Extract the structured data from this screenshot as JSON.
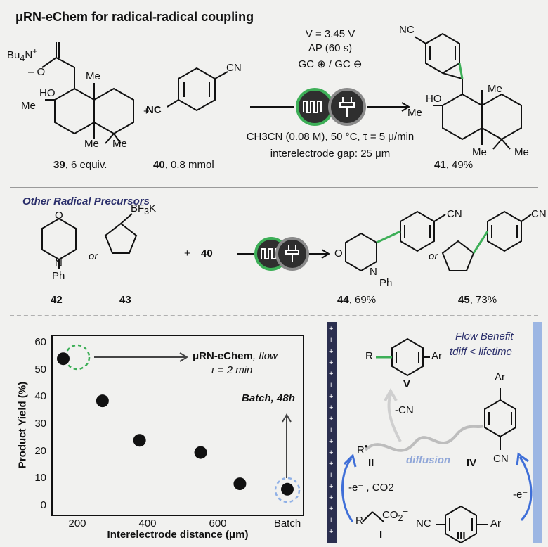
{
  "title": "μRN-eChem for radical-radical coupling",
  "conditions": {
    "voltage": "V = 3.45 V",
    "ap": "AP (60 s)",
    "electrodes": "GC ⊕ / GC ⊖",
    "solvent": "CH3CN (0.08 M), 50 °C, τ = 5 μ/min",
    "gap": "interelectrode gap: 25 μm"
  },
  "compounds": {
    "c39": {
      "num": "39",
      "label": ", 6 equiv."
    },
    "c40": {
      "num": "40",
      "label": ", 0.8 mmol"
    },
    "c41": {
      "num": "41",
      "label": ", 49%"
    },
    "c42": {
      "num": "42"
    },
    "c43": {
      "num": "43"
    },
    "c44": {
      "num": "44",
      "label": ", 69%"
    },
    "c45": {
      "num": "45",
      "label": ", 73%"
    }
  },
  "section2": {
    "heading": "Other Radical Precursors",
    "or1": "or",
    "or2": "or",
    "plus": "+",
    "reagent": "40"
  },
  "chart_data": {
    "type": "scatter",
    "xlabel": "Interelectrode distance (μm)",
    "ylabel": "Product Yield (%)",
    "ylim": [
      0,
      60
    ],
    "yticks": [
      0,
      10,
      20,
      30,
      40,
      50,
      60
    ],
    "xticks": [
      "200",
      "400",
      "600",
      "Batch"
    ],
    "points": [
      {
        "x": 200,
        "y": 54
      },
      {
        "x": 290,
        "y": 38.5
      },
      {
        "x": 375,
        "y": 24
      },
      {
        "x": 515,
        "y": 19.5
      },
      {
        "x": 605,
        "y": 8
      },
      {
        "x": "Batch",
        "y": 6
      }
    ],
    "annotations": {
      "flow_label": "μRN-eChem",
      "flow_suffix": ", flow",
      "flow_tau": "τ = 2 min",
      "batch": "Batch, 48h"
    }
  },
  "mechanism": {
    "flow_benefit": "Flow Benefit",
    "tdiff": "tdiff < lifetime",
    "diffusion": "diffusion",
    "cn_loss": "-CN⁻",
    "ox_step": "-e⁻ , CO2",
    "red_step": "-e⁻",
    "labels": {
      "I": "I",
      "II": "II",
      "III": "III",
      "IV": "IV",
      "V": "V"
    }
  },
  "colors": {
    "green": "#3daf57",
    "blue": "#3f6fd8",
    "purple_text": "#2b2f6b"
  }
}
